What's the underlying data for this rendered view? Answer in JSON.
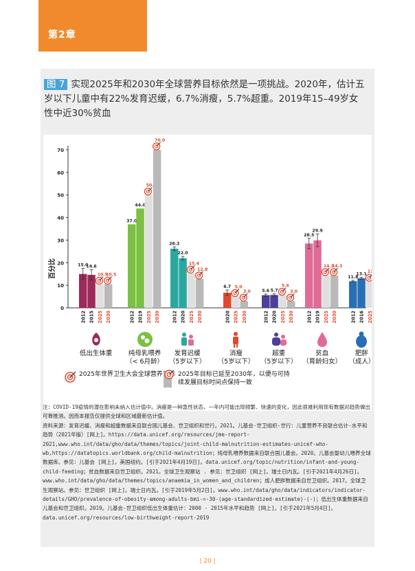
{
  "chapter": {
    "tab_label": "第2章"
  },
  "figure": {
    "label": "图 7",
    "title": "实现2025年和2030年全球营养目标依然是一项挑战。2020年，估计五岁以下儿童中有22%发育迟缓，6.7%消瘦，5.7%超重。2019年15–49岁女性中近30%贫血"
  },
  "colors": {
    "bar_colors": [
      "#9c2a5a",
      "#7bc043",
      "#2aa8a0",
      "#e0492d",
      "#4b3f99",
      "#e06b98",
      "#2a6fb5"
    ],
    "target_bar": "#e0e0e0",
    "extended_target_bar": "#b9b9b9",
    "label_red": "#e0492d"
  },
  "chart_data": {
    "type": "bar",
    "ylabel": "百分比",
    "ylim": [
      0,
      70
    ],
    "yticks": [
      0,
      10,
      20,
      30,
      40,
      50,
      60,
      70
    ],
    "groups": [
      {
        "name": "低出生体重",
        "sub": "",
        "icon": "low-birthweight-icon",
        "bars": [
          {
            "x": "2012",
            "value": 15.0,
            "kind": "actual",
            "err": 2.5
          },
          {
            "x": "2015",
            "value": 14.6,
            "kind": "actual",
            "err": 2.3
          },
          {
            "x": "2025",
            "value": 10.5,
            "kind": "target"
          },
          {
            "x": "2030",
            "value": 10.5,
            "kind": "extended"
          }
        ]
      },
      {
        "name": "纯母乳喂养",
        "sub": "（< 6月龄）",
        "icon": "breastfeeding-icon",
        "bars": [
          {
            "x": "2012",
            "value": 37.0,
            "kind": "actual"
          },
          {
            "x": "2019",
            "value": 44.0,
            "kind": "actual"
          },
          {
            "x": "2025",
            "value": 50.0,
            "kind": "target"
          },
          {
            "x": "2030",
            "value": 70.0,
            "kind": "extended"
          }
        ]
      },
      {
        "name": "发育迟缓",
        "sub": "（5岁以下）",
        "icon": "stunting-icon",
        "bars": [
          {
            "x": "2012",
            "value": 26.2,
            "kind": "actual",
            "err": 0.8
          },
          {
            "x": "2020",
            "value": 22.0,
            "kind": "actual",
            "err": 0.8
          },
          {
            "x": "2025",
            "value": 15.4,
            "kind": "target"
          },
          {
            "x": "2030",
            "value": 12.8,
            "kind": "extended"
          }
        ]
      },
      {
        "name": "消瘦",
        "sub": "（5岁以下）",
        "icon": "wasting-icon",
        "bars": [
          {
            "x": "2020",
            "value": 6.7,
            "kind": "actual",
            "err": 1.2
          },
          {
            "x": "2025",
            "value": 5.0,
            "kind": "target"
          },
          {
            "x": "2030",
            "value": 3.0,
            "kind": "extended"
          }
        ]
      },
      {
        "name": "超重",
        "sub": "（5岁以下）",
        "icon": "overweight-icon",
        "bars": [
          {
            "x": "2012",
            "value": 5.6,
            "kind": "actual",
            "err": 0.5
          },
          {
            "x": "2020",
            "value": 5.7,
            "kind": "actual",
            "err": 0.5
          },
          {
            "x": "2025",
            "value": 5.6,
            "kind": "target"
          },
          {
            "x": "2030",
            "value": 3.0,
            "kind": "extended"
          }
        ]
      },
      {
        "name": "贫血",
        "sub": "（育龄妇女）",
        "icon": "anemia-icon",
        "bars": [
          {
            "x": "2012",
            "value": 28.5,
            "kind": "actual",
            "err": 2.3
          },
          {
            "x": "2019",
            "value": 29.9,
            "kind": "actual",
            "err": 2.8
          },
          {
            "x": "2025",
            "value": 14.3,
            "kind": "target"
          },
          {
            "x": "2030",
            "value": 14.3,
            "kind": "extended"
          }
        ]
      },
      {
        "name": "肥胖",
        "sub": "（成人）",
        "icon": "obesity-icon",
        "bars": [
          {
            "x": "2012",
            "value": 11.8,
            "kind": "actual",
            "err": 0.4
          },
          {
            "x": "2016",
            "value": 13.1,
            "kind": "actual",
            "err": 0.4
          },
          {
            "x": "2025",
            "value": 11.8,
            "kind": "target"
          }
        ]
      }
    ]
  },
  "legend": {
    "target_2025": "2025年世界卫生大会全球营养目标",
    "target_2030": "2025年目标已延至2030年，以便与可持续发展目标时间点保持一致"
  },
  "notes": [
    "注：COVID-19疫情的潜在影响未纳入估计值中。消瘦是一种急性状态，一年内可能出现频繁、快速的变化，因此很难利用现有数据对趋势做出可靠推测。因而本报告仅提供全球和区域最新估计值。",
    "资料来源：发育迟缓、消瘦和超重数据来自联合国儿基会、世卫组织和世行。2021。儿基会-世卫组织-世行：儿童营养不良联合估计-水平和趋势（2021年版）[网上]。https://data.unicef.org/resources/jme-report-2021,www.who.int/data/gho/data/themes/topics/joint-child-malnutrition-estimates-unicef-who-wb,https://datatopics.worldbank.org/child-malnutrition；纯母乳喂养数据来自联合国儿基会。2020。儿基会婴幼儿喂养全球数据库。参见：儿基会 [网上]。美国纽约。[引于2021年4月19日]。data.unicef.org/topic/nutrition/infant-and-young-child-feeding；贫血数据来自世卫组织。2021。全球卫生观察站 . 参见：世卫组织 [网上]。瑞士日内瓦。[引于2021年4月26日]。www.who.int/data/gho/data/themes/topics/anaemia_in_women_and_children；成人肥胖数据来自世卫组织。2017。全球卫生观察站。参见：世卫组织 [网上]。瑞士日内瓦。[引于2019年5月2日]。www.who.int/data/gho/data/indicators/indicator-details/GHO/prevalence-of-obesity-among-adults-bmi-=-30-(age-standardized-estimate)-(-)；低出生体重数据来自儿基会和世卫组织。2019。儿基会-世卫组织低出生体重估计：2000 - 2015年水平和趋势 [网上]。[引于2021年5月4日]。data.unicef.org/resources/low-birthweight-report-2019"
  ],
  "page": {
    "number": "| 20 |"
  }
}
